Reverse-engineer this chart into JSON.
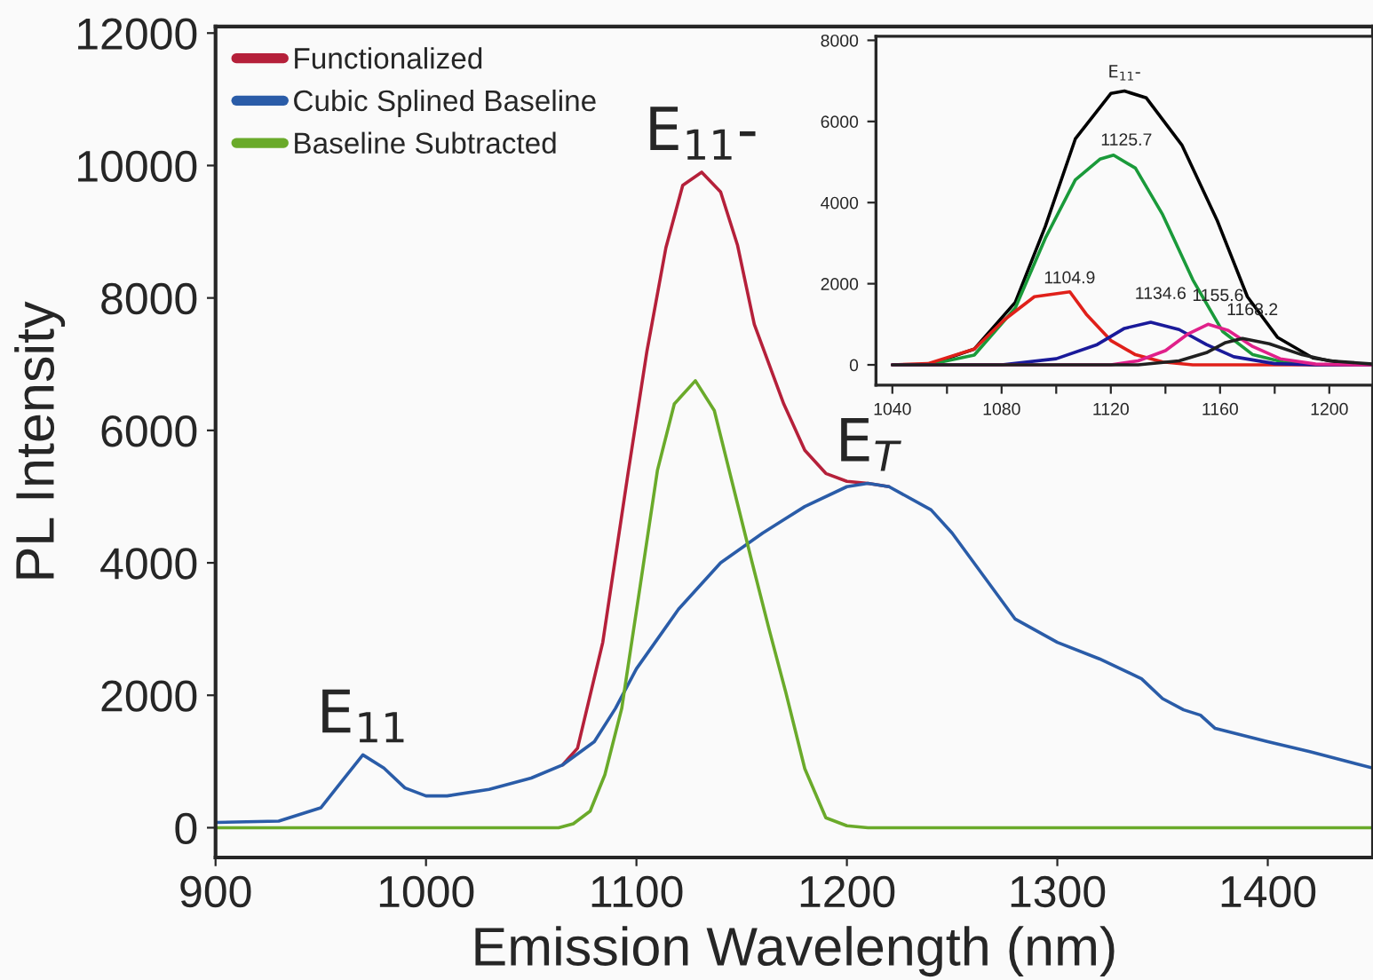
{
  "chart_data": [
    {
      "type": "line",
      "xlabel": "Emission Wavelength (nm)",
      "ylabel": "PL Intensity",
      "xlim": [
        900,
        1450
      ],
      "ylim": [
        -450,
        12100
      ],
      "xticks": [
        900,
        1000,
        1100,
        1200,
        1300,
        1400
      ],
      "yticks": [
        0,
        2000,
        4000,
        6000,
        8000,
        10000,
        12000
      ],
      "grid": false,
      "legend": "top left",
      "series": [
        {
          "name": "Functionalized",
          "color": "#b5203a",
          "x": [
            1065,
            1072,
            1084,
            1096,
            1105,
            1114,
            1122,
            1131,
            1140,
            1148,
            1156,
            1170,
            1180,
            1190,
            1200,
            1210,
            1220
          ],
          "values": [
            950,
            1200,
            2800,
            5350,
            7200,
            8760,
            9700,
            9900,
            9600,
            8800,
            7600,
            6400,
            5700,
            5350,
            5230,
            5200,
            5150
          ]
        },
        {
          "name": "Cubic Splined Baseline",
          "color": "#2a5ca8",
          "x": [
            900,
            930,
            950,
            960,
            970,
            980,
            990,
            1000,
            1010,
            1030,
            1050,
            1065,
            1080,
            1090,
            1100,
            1120,
            1140,
            1160,
            1170,
            1180,
            1200,
            1210,
            1220,
            1240,
            1250,
            1265,
            1280,
            1300,
            1320,
            1340,
            1350,
            1360,
            1368,
            1375,
            1400,
            1420,
            1450
          ],
          "values": [
            80,
            100,
            300,
            700,
            1100,
            900,
            600,
            480,
            480,
            580,
            750,
            950,
            1300,
            1800,
            2400,
            3300,
            4000,
            4450,
            4650,
            4850,
            5150,
            5200,
            5150,
            4800,
            4450,
            3800,
            3150,
            2800,
            2550,
            2250,
            1950,
            1780,
            1700,
            1500,
            1300,
            1150,
            900
          ]
        },
        {
          "name": "Baseline Subtracted",
          "color": "#6aaa2a",
          "x": [
            900,
            1063,
            1070,
            1078,
            1085,
            1093,
            1102,
            1110,
            1118,
            1128,
            1137,
            1146,
            1155,
            1163,
            1171,
            1180,
            1190,
            1200,
            1210,
            1450
          ],
          "values": [
            0,
            0,
            60,
            250,
            800,
            1800,
            3700,
            5400,
            6400,
            6750,
            6300,
            5150,
            4000,
            3000,
            2040,
            890,
            150,
            30,
            0,
            0
          ]
        }
      ],
      "annotations": [
        {
          "text": "E$_{11}$",
          "x": 970,
          "y": 1100
        },
        {
          "text": "E$_{11}$-",
          "x": 1131,
          "y": 9900
        },
        {
          "text": "E$_{T}$",
          "x": 1210,
          "y": 5200
        }
      ]
    },
    {
      "type": "line",
      "xlim": [
        1034,
        1216
      ],
      "ylim": [
        -500,
        8100
      ],
      "xticks": [
        1040,
        {
          "value": 1060,
          "label": null
        },
        1080,
        {
          "value": 1100,
          "label": null
        },
        1120,
        {
          "value": 1140,
          "label": null
        },
        1160,
        {
          "value": 1180,
          "label": null
        },
        1200
      ],
      "yticks": [
        0,
        2000,
        4000,
        6000,
        8000
      ],
      "grid": false,
      "legend": false,
      "series": [
        {
          "color": "#000000",
          "x": [
            1040,
            1053,
            1070,
            1085,
            1096,
            1107,
            1120,
            1125,
            1133,
            1146,
            1159,
            1170,
            1181,
            1194,
            1207,
            1216
          ],
          "values": [
            0,
            0,
            390,
            1540,
            3410,
            5570,
            6690,
            6750,
            6580,
            5420,
            3550,
            1680,
            680,
            170,
            30,
            0
          ]
        },
        {
          "color": "#1a9a3a",
          "x": [
            1040,
            1053,
            1070,
            1085,
            1096,
            1107,
            1116,
            1121,
            1129,
            1139,
            1150,
            1161,
            1172,
            1183,
            1194,
            1216
          ],
          "values": [
            0,
            0,
            240,
            1400,
            3120,
            4560,
            5070,
            5170,
            4850,
            3700,
            2100,
            820,
            250,
            70,
            0,
            0
          ]
        },
        {
          "color": "#e0201a",
          "x": [
            1040,
            1053,
            1070,
            1081,
            1092,
            1105,
            1111,
            1120,
            1129,
            1139,
            1150,
            1216
          ],
          "values": [
            0,
            30,
            390,
            1110,
            1680,
            1800,
            1250,
            600,
            250,
            70,
            0,
            0
          ]
        },
        {
          "color": "#1a1a9a",
          "x": [
            1040,
            1080,
            1100,
            1115,
            1125,
            1134.6,
            1145,
            1155,
            1165,
            1180,
            1195,
            1216
          ],
          "values": [
            0,
            0,
            150,
            500,
            900,
            1050,
            870,
            500,
            200,
            30,
            0,
            0
          ]
        },
        {
          "color": "#e0208a",
          "x": [
            1040,
            1120,
            1130,
            1140,
            1148,
            1155.6,
            1163,
            1172,
            1182,
            1195,
            1210,
            1216
          ],
          "values": [
            0,
            0,
            100,
            350,
            750,
            1000,
            850,
            450,
            150,
            20,
            0,
            0
          ]
        },
        {
          "color": "#202020",
          "x": [
            1040,
            1130,
            1145,
            1155,
            1162,
            1168.2,
            1178,
            1190,
            1200,
            1216
          ],
          "values": [
            0,
            0,
            100,
            300,
            550,
            650,
            520,
            250,
            100,
            20
          ]
        }
      ],
      "annotations": [
        {
          "text": "E$_{11}$-",
          "x": 1125,
          "y": 6750
        },
        {
          "text": "1125.7",
          "x": 1125.7,
          "y": 5200
        },
        {
          "text": "1104.9",
          "x": 1104.9,
          "y": 1800
        },
        {
          "text": "1134.6",
          "x": 1134.6,
          "y": 1050
        },
        {
          "text": "1155.6",
          "x": 1155.6,
          "y": 1000
        },
        {
          "text": "1168.2",
          "x": 1168.2,
          "y": 650
        }
      ]
    }
  ]
}
